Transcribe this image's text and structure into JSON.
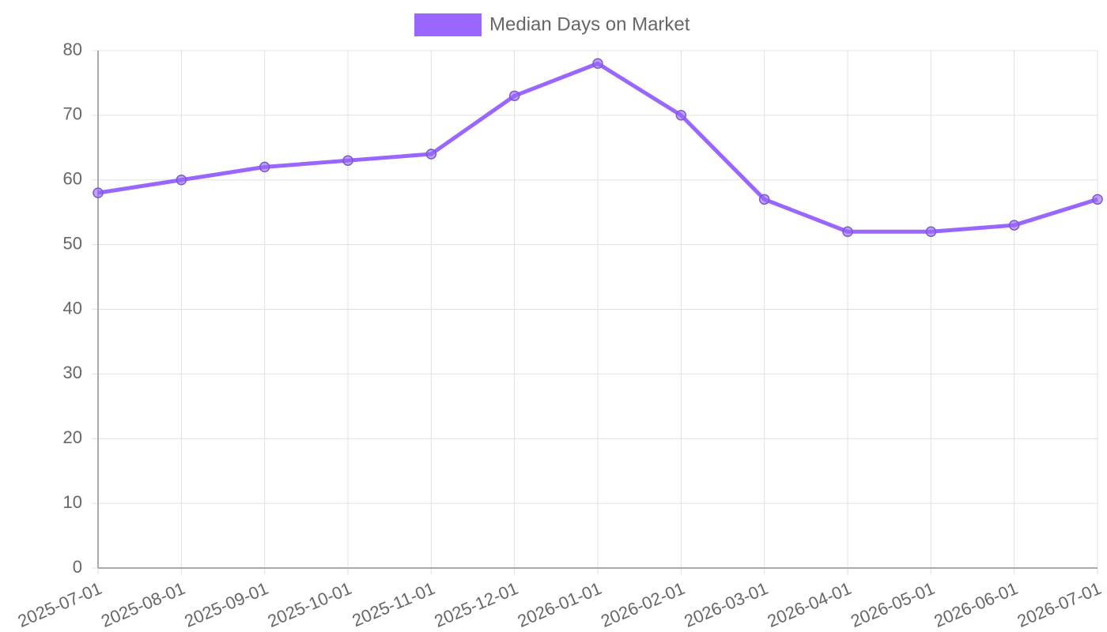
{
  "chart_data": {
    "type": "line",
    "categories": [
      "2025-07-01",
      "2025-08-01",
      "2025-09-01",
      "2025-10-01",
      "2025-11-01",
      "2025-12-01",
      "2026-01-01",
      "2026-02-01",
      "2026-03-01",
      "2026-04-01",
      "2026-05-01",
      "2026-06-01",
      "2026-07-01"
    ],
    "series": [
      {
        "name": "Median Days on Market",
        "color": "#9966ff",
        "values": [
          58,
          60,
          62,
          63,
          64,
          73,
          78,
          70,
          57,
          52,
          52,
          53,
          57
        ]
      }
    ],
    "ylim": [
      0,
      80
    ],
    "yticks": [
      0,
      10,
      20,
      30,
      40,
      50,
      60,
      70,
      80
    ],
    "grid": true,
    "legend": "top"
  }
}
